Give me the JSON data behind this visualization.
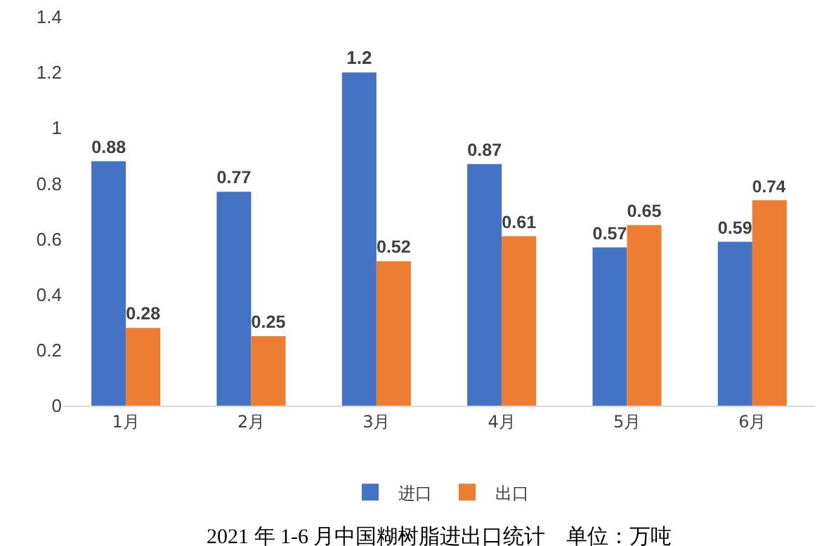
{
  "chart_data": {
    "type": "bar",
    "title": "2021 年 1-6 月中国糊树脂进出口统计    单位：万吨",
    "categories": [
      "1月",
      "2月",
      "3月",
      "4月",
      "5月",
      "6月"
    ],
    "series": [
      {
        "name": "进口",
        "color": "#4472c4",
        "values": [
          0.88,
          0.77,
          1.2,
          0.87,
          0.57,
          0.59
        ]
      },
      {
        "name": "出口",
        "color": "#ed7d31",
        "values": [
          0.28,
          0.25,
          0.52,
          0.61,
          0.65,
          0.74
        ]
      }
    ],
    "ylim": [
      0,
      1.4
    ],
    "yticks": [
      0,
      0.2,
      0.4,
      0.6,
      0.8,
      1,
      1.2,
      1.4
    ],
    "data_labels": true,
    "legend": "bottom"
  }
}
